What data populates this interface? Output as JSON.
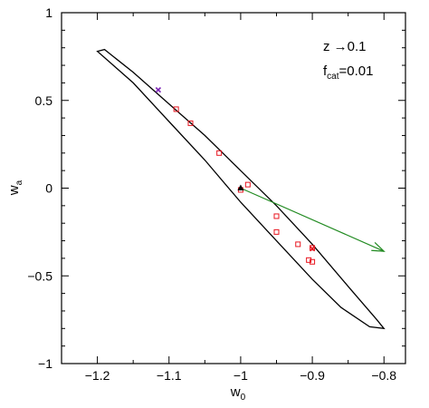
{
  "chart_data": {
    "type": "scatter",
    "xlabel": {
      "base": "w",
      "sub": "0"
    },
    "ylabel": {
      "base": "w",
      "sub": "a"
    },
    "xlim": [
      -1.25,
      -0.77
    ],
    "ylim": [
      -1,
      1
    ],
    "xticks": [
      -1.2,
      -1.1,
      -1,
      -0.9,
      -0.8
    ],
    "xtick_labels": [
      "−1.2",
      "−1.1",
      "−1",
      "−0.9",
      "−0.8"
    ],
    "yticks": [
      -1,
      -0.5,
      0,
      0.5,
      1
    ],
    "ytick_labels": [
      "−1",
      "−0.5",
      "0",
      "0.5",
      "1"
    ],
    "annotations": [
      {
        "text": "z  →0.1"
      },
      {
        "base": "f",
        "sub": "cat",
        "rest": "=0.01"
      }
    ],
    "ellipse_outline": [
      [
        -1.2,
        0.78
      ],
      [
        -1.19,
        0.79
      ],
      [
        -1.15,
        0.66
      ],
      [
        -1.1,
        0.48
      ],
      [
        -1.05,
        0.3
      ],
      [
        -1.0,
        0.1
      ],
      [
        -0.95,
        -0.1
      ],
      [
        -0.9,
        -0.32
      ],
      [
        -0.85,
        -0.56
      ],
      [
        -0.81,
        -0.75
      ],
      [
        -0.8,
        -0.8
      ],
      [
        -0.82,
        -0.79
      ],
      [
        -0.86,
        -0.68
      ],
      [
        -0.9,
        -0.52
      ],
      [
        -0.95,
        -0.3
      ],
      [
        -1.0,
        -0.08
      ],
      [
        -1.05,
        0.16
      ],
      [
        -1.1,
        0.38
      ],
      [
        -1.15,
        0.6
      ],
      [
        -1.2,
        0.78
      ]
    ],
    "series": [
      {
        "marker": "open-square",
        "color": "#e8141e",
        "points": [
          [
            -1.09,
            0.45
          ],
          [
            -1.07,
            0.37
          ],
          [
            -1.03,
            0.2
          ],
          [
            -0.99,
            0.02
          ],
          [
            -1.0,
            -0.01
          ],
          [
            -0.95,
            -0.16
          ],
          [
            -0.95,
            -0.25
          ],
          [
            -0.92,
            -0.32
          ],
          [
            -0.9,
            -0.34
          ],
          [
            -0.905,
            -0.41
          ],
          [
            -0.9,
            -0.42
          ]
        ]
      },
      {
        "marker": "x",
        "color": "#7a1fb5",
        "points": [
          [
            -1.115,
            0.56
          ]
        ]
      },
      {
        "marker": "x",
        "color": "#e8141e",
        "points": [
          [
            -0.9,
            -0.345
          ]
        ]
      },
      {
        "marker": "filled-triangle",
        "color": "#000000",
        "points": [
          [
            -1.0,
            0.0
          ]
        ]
      }
    ],
    "arrow": {
      "from": [
        -1.0,
        0.0
      ],
      "to": [
        -0.8,
        -0.36
      ],
      "color": "#228b22"
    }
  }
}
